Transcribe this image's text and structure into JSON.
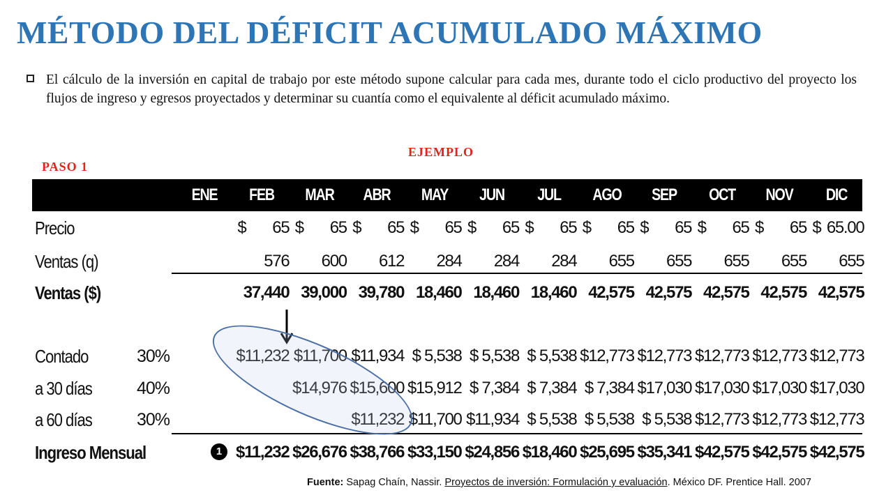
{
  "title": "MÉTODO DEL DÉFICIT ACUMULADO MÁXIMO",
  "bullet": "El cálculo de la inversión en capital de trabajo por este método supone calcular para cada mes, durante todo el ciclo productivo del proyecto los flujos de ingreso y egresos proyectados y determinar  su cuantía como el  equivalente  al déficit acumulado máximo.",
  "ejemplo": "EJEMPLO",
  "paso": "PASO 1",
  "table": {
    "months": [
      "ENE",
      "FEB",
      "MAR",
      "ABR",
      "MAY",
      "JUN",
      "JUL",
      "AGO",
      "SEP",
      "OCT",
      "NOV",
      "DIC"
    ],
    "precio": {
      "label": "Precio",
      "currency": "$",
      "values": [
        "",
        "65",
        "65",
        "65",
        "65",
        "65",
        "65",
        "65",
        "65",
        "65",
        "65",
        "65.00"
      ]
    },
    "ventas_q": {
      "label": "Ventas (q)",
      "values": [
        "",
        "576",
        "600",
        "612",
        "284",
        "284",
        "284",
        "655",
        "655",
        "655",
        "655",
        "655"
      ]
    },
    "ventas_usd": {
      "label": "Ventas ($)",
      "values": [
        "",
        "37,440",
        "39,000",
        "39,780",
        "18,460",
        "18,460",
        "18,460",
        "42,575",
        "42,575",
        "42,575",
        "42,575",
        "42,575"
      ]
    },
    "contado": {
      "label": "Contado",
      "pct": "30%",
      "values": [
        "",
        "$11,232",
        "$11,700",
        "$11,934",
        "$ 5,538",
        "$ 5,538",
        "$ 5,538",
        "$12,773",
        "$12,773",
        "$12,773",
        "$12,773",
        "$12,773"
      ]
    },
    "a30": {
      "label": "a 30 días",
      "pct": "40%",
      "values": [
        "",
        "",
        "$14,976",
        "$15,600",
        "$15,912",
        "$ 7,384",
        "$ 7,384",
        "$ 7,384",
        "$17,030",
        "$17,030",
        "$17,030",
        "$17,030"
      ]
    },
    "a60": {
      "label": "a 60 días",
      "pct": "30%",
      "values": [
        "",
        "",
        "",
        "$11,232",
        "$11,700",
        "$11,934",
        "$ 5,538",
        "$ 5,538",
        "$ 5,538",
        "$12,773",
        "$12,773",
        "$12,773"
      ]
    },
    "ingreso": {
      "label": "Ingreso Mensual",
      "values": [
        "",
        "$11,232",
        "$26,676",
        "$38,766",
        "$33,150",
        "$24,856",
        "$18,460",
        "$25,695",
        "$35,341",
        "$42,575",
        "$42,575",
        "$42,575"
      ]
    }
  },
  "marker": "1",
  "fuente": {
    "label": "Fuente:",
    "author": " Sapag Chaín, Nassir. ",
    "book": "Proyectos de inversión: Formulación y evaluación",
    "rest": ". México DF. Prentice Hall. 2007"
  }
}
